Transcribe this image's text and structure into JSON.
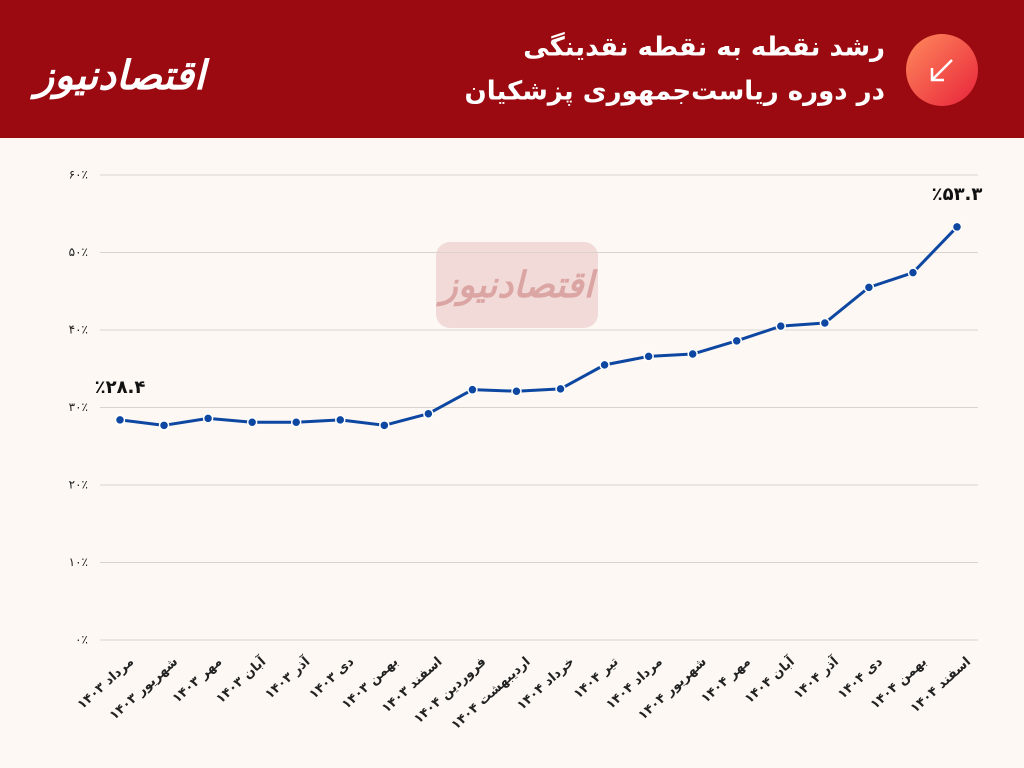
{
  "logo": "اقتصادنیوز",
  "chart_data": {
    "type": "line",
    "title": [
      "رشد نقطه به نقطه نقدینگی",
      "در دوره ریاست‌جمهوری پزشکیان"
    ],
    "categories": [
      "مرداد ۱۴۰۳",
      "شهریور ۱۴۰۳",
      "مهر ۱۴۰۳",
      "آبان ۱۴۰۳",
      "آذر ۱۴۰۳",
      "دی ۱۴۰۳",
      "بهمن ۱۴۰۳",
      "اسفند ۱۴۰۳",
      "فروردین ۱۴۰۴",
      "اردیبهشت ۱۴۰۴",
      "خرداد ۱۴۰۴",
      "تیر ۱۴۰۴",
      "مرداد ۱۴۰۴",
      "شهریور ۱۴۰۴",
      "مهر ۱۴۰۴",
      "آبان ۱۴۰۴",
      "آذر ۱۴۰۴",
      "دی ۱۴۰۴",
      "بهمن ۱۴۰۴",
      "اسفند ۱۴۰۴"
    ],
    "values": [
      28.4,
      27.7,
      28.6,
      28.1,
      28.1,
      28.4,
      27.7,
      29.2,
      32.3,
      32.1,
      32.4,
      35.5,
      36.6,
      36.9,
      38.6,
      40.5,
      40.9,
      45.5,
      47.4,
      53.3
    ],
    "value_labels": [
      "٪۲۸.۴",
      null,
      null,
      null,
      null,
      null,
      null,
      null,
      null,
      null,
      null,
      null,
      null,
      null,
      null,
      null,
      null,
      null,
      null,
      "٪۵۳.۳"
    ],
    "color": "#0d47a1",
    "ylim": [
      0,
      60
    ],
    "yticks": [
      {
        "value": 0,
        "label": "۰٪"
      },
      {
        "value": 10,
        "label": "۱۰٪"
      },
      {
        "value": 20,
        "label": "۲۰٪"
      },
      {
        "value": 30,
        "label": "۳۰٪"
      },
      {
        "value": 40,
        "label": "۴۰٪"
      },
      {
        "value": 50,
        "label": "۵۰٪"
      },
      {
        "value": 60,
        "label": "۶۰٪"
      }
    ],
    "grid": true
  }
}
